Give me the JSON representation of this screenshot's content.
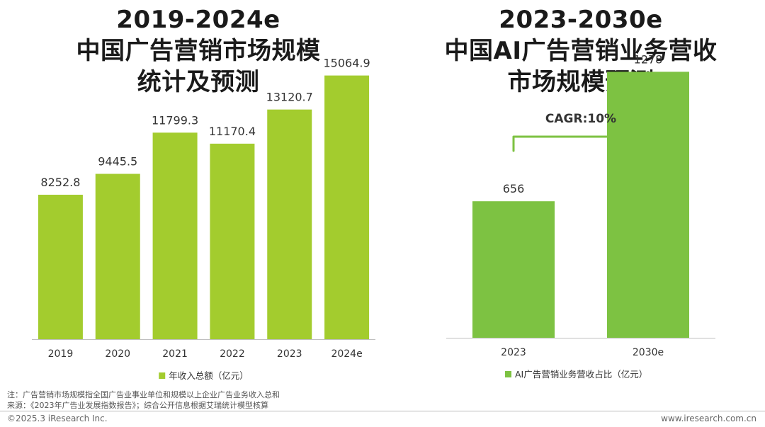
{
  "left_title": {
    "line1": "2019-2024e",
    "line2": "中国广告营销市场规模",
    "line3": "统计及预测"
  },
  "right_title": {
    "line1": "2023-2030e",
    "line2": "中国AI广告营销业务营收",
    "line3": "市场规模预测"
  },
  "chart_data": [
    {
      "type": "bar",
      "categories": [
        "2019",
        "2020",
        "2021",
        "2022",
        "2023",
        "2024e"
      ],
      "values": [
        8252.8,
        9445.5,
        11799.3,
        11170.4,
        13120.7,
        15064.9
      ],
      "value_labels": [
        "8252.8",
        "9445.5",
        "11799.3",
        "11170.4",
        "13120.7",
        "15064.9"
      ],
      "series": [
        {
          "name": "年收入总额（亿元）",
          "values": [
            8252.8,
            9445.5,
            11799.3,
            11170.4,
            13120.7,
            15064.9
          ]
        }
      ],
      "legend": "bottom",
      "color": "#a3cc2e",
      "ylim": [
        0,
        17800
      ],
      "grid": false
    },
    {
      "type": "bar",
      "categories": [
        "2023",
        "2030e"
      ],
      "values": [
        656,
        1278
      ],
      "value_labels": [
        "656",
        "1278"
      ],
      "series": [
        {
          "name": "AI广告营销业务营收占比（亿元）",
          "values": [
            656,
            1278
          ]
        }
      ],
      "legend": "bottom",
      "color": "#7dc242",
      "ylim": [
        0,
        1480
      ],
      "annotation": "CAGR:10%",
      "grid": false
    }
  ],
  "notes": {
    "line1": "注：广告营销市场规模指全国广告业事业单位和规模以上企业广告业务收入总和",
    "line2": "来源：《2023年广告业发展指数报告》；综合公开信息根据艾瑞统计模型核算"
  },
  "footer": {
    "left": "©2025.3 iResearch Inc.",
    "right": "www.iresearch.com.cn"
  }
}
